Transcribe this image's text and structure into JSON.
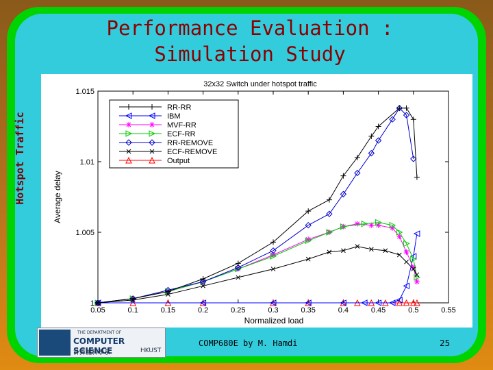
{
  "slide": {
    "title": "Performance Evaluation : Simulation Study",
    "side_label": "Hotspot Traffic",
    "footer": "COMP680E by M. Hamdi",
    "page_number": "25",
    "logo": {
      "line1": "THE DEPARTMENT OF",
      "line2": "COMPUTER SCIENCE",
      "line3": "計算機科學系",
      "line4": "HKUST"
    }
  },
  "chart_data": {
    "type": "line",
    "title": "32x32 Switch under hotspot traffic",
    "xlabel": "Normalized load",
    "ylabel": "Average delay",
    "xlim": [
      0.05,
      0.55
    ],
    "ylim": [
      1.0,
      1.015
    ],
    "xticks": [
      "0.05",
      "0.1",
      "0.15",
      "0.2",
      "0.25",
      "0.3",
      "0.35",
      "0.4",
      "0.45",
      "0.5",
      "0.55"
    ],
    "yticks": [
      "1",
      "1.005",
      "1.01",
      "1.015"
    ],
    "grid": false,
    "legend_position": "top-left",
    "series": [
      {
        "name": "RR-RR",
        "color": "#000000",
        "marker": "plus",
        "points": [
          [
            0.05,
            1.0
          ],
          [
            0.1,
            1.0003
          ],
          [
            0.15,
            1.0008
          ],
          [
            0.2,
            1.0017
          ],
          [
            0.25,
            1.0028
          ],
          [
            0.3,
            1.0043
          ],
          [
            0.35,
            1.0065
          ],
          [
            0.38,
            1.0073
          ],
          [
            0.4,
            1.009
          ],
          [
            0.42,
            1.0103
          ],
          [
            0.44,
            1.0118
          ],
          [
            0.45,
            1.0125
          ],
          [
            0.48,
            1.0138
          ],
          [
            0.49,
            1.0138
          ],
          [
            0.5,
            1.013
          ],
          [
            0.505,
            1.0089
          ]
        ]
      },
      {
        "name": "IBM",
        "color": "#0000ff",
        "marker": "triangle-left",
        "points": [
          [
            0.05,
            1.0
          ],
          [
            0.2,
            1.0
          ],
          [
            0.3,
            1.0
          ],
          [
            0.35,
            1.0
          ],
          [
            0.4,
            1.0
          ],
          [
            0.43,
            1.0
          ],
          [
            0.45,
            1.0
          ],
          [
            0.47,
            1.0
          ],
          [
            0.48,
            1.0002
          ],
          [
            0.49,
            1.0012
          ],
          [
            0.5,
            1.0033
          ],
          [
            0.505,
            1.0049
          ]
        ]
      },
      {
        "name": "MVF-RR",
        "color": "#ff00ff",
        "marker": "star",
        "points": [
          [
            0.05,
            1.0
          ],
          [
            0.1,
            1.0003
          ],
          [
            0.15,
            1.0008
          ],
          [
            0.2,
            1.0015
          ],
          [
            0.25,
            1.0024
          ],
          [
            0.3,
            1.0034
          ],
          [
            0.35,
            1.0045
          ],
          [
            0.38,
            1.005
          ],
          [
            0.4,
            1.0054
          ],
          [
            0.42,
            1.0056
          ],
          [
            0.44,
            1.0055
          ],
          [
            0.45,
            1.0055
          ],
          [
            0.47,
            1.0053
          ],
          [
            0.48,
            1.0047
          ],
          [
            0.49,
            1.0036
          ],
          [
            0.5,
            1.0025
          ],
          [
            0.505,
            1.0015
          ]
        ]
      },
      {
        "name": "ECF-RR",
        "color": "#00cc00",
        "marker": "triangle-right",
        "points": [
          [
            0.05,
            1.0
          ],
          [
            0.1,
            1.0003
          ],
          [
            0.15,
            1.0008
          ],
          [
            0.2,
            1.0015
          ],
          [
            0.25,
            1.0024
          ],
          [
            0.3,
            1.0033
          ],
          [
            0.35,
            1.0044
          ],
          [
            0.38,
            1.005
          ],
          [
            0.4,
            1.0054
          ],
          [
            0.43,
            1.0056
          ],
          [
            0.45,
            1.0057
          ],
          [
            0.47,
            1.0055
          ],
          [
            0.48,
            1.005
          ],
          [
            0.49,
            1.0042
          ],
          [
            0.5,
            1.0031
          ],
          [
            0.505,
            1.0018
          ]
        ]
      },
      {
        "name": "RR-REMOVE",
        "color": "#0000cc",
        "marker": "diamond",
        "points": [
          [
            0.05,
            1.0
          ],
          [
            0.1,
            1.0003
          ],
          [
            0.15,
            1.0009
          ],
          [
            0.2,
            1.0015
          ],
          [
            0.25,
            1.0025
          ],
          [
            0.3,
            1.0037
          ],
          [
            0.35,
            1.0055
          ],
          [
            0.38,
            1.0063
          ],
          [
            0.4,
            1.0077
          ],
          [
            0.42,
            1.0092
          ],
          [
            0.44,
            1.0106
          ],
          [
            0.45,
            1.0115
          ],
          [
            0.47,
            1.013
          ],
          [
            0.48,
            1.0138
          ],
          [
            0.49,
            1.0133
          ],
          [
            0.5,
            1.0102
          ]
        ]
      },
      {
        "name": "ECF-REMOVE",
        "color": "#000000",
        "marker": "x",
        "points": [
          [
            0.05,
            1.0
          ],
          [
            0.1,
            1.0002
          ],
          [
            0.15,
            1.0006
          ],
          [
            0.2,
            1.0012
          ],
          [
            0.25,
            1.0018
          ],
          [
            0.3,
            1.0024
          ],
          [
            0.35,
            1.0031
          ],
          [
            0.38,
            1.0036
          ],
          [
            0.4,
            1.0037
          ],
          [
            0.42,
            1.004
          ],
          [
            0.44,
            1.0038
          ],
          [
            0.46,
            1.0037
          ],
          [
            0.48,
            1.0034
          ],
          [
            0.49,
            1.0029
          ],
          [
            0.5,
            1.0024
          ],
          [
            0.505,
            1.002
          ]
        ]
      },
      {
        "name": "Output",
        "color": "#ff0000",
        "marker": "triangle-up",
        "points": [
          [
            0.05,
            1.0
          ],
          [
            0.1,
            1.0
          ],
          [
            0.15,
            1.0
          ],
          [
            0.2,
            1.0
          ],
          [
            0.3,
            1.0
          ],
          [
            0.35,
            1.0
          ],
          [
            0.4,
            1.0
          ],
          [
            0.42,
            1.0
          ],
          [
            0.44,
            1.0
          ],
          [
            0.46,
            1.0
          ],
          [
            0.48,
            1.0
          ],
          [
            0.49,
            1.0
          ],
          [
            0.5,
            1.0
          ],
          [
            0.505,
            1.0
          ]
        ]
      }
    ]
  }
}
